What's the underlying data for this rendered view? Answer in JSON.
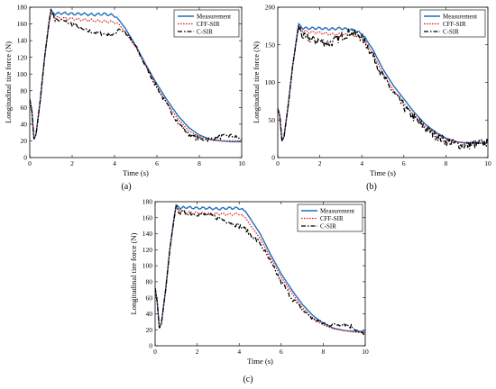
{
  "colors": {
    "measurement": "#1f6fbf",
    "cff_sir": "#e02020",
    "c_sir": "#000000"
  },
  "chart_data": [
    {
      "type": "line",
      "caption": "(a)",
      "xlabel": "Time (s)",
      "ylabel": "Longitudinal tire force (N)",
      "xlim": [
        0,
        10
      ],
      "ylim": [
        0,
        180
      ],
      "xticks": [
        "0",
        "2",
        "4",
        "6",
        "8",
        "10"
      ],
      "yticks": [
        "0",
        "20",
        "40",
        "60",
        "80",
        "100",
        "120",
        "140",
        "160",
        "180"
      ],
      "legend": "top-right",
      "grid": false,
      "series": [
        {
          "name": "Measurement",
          "style": "solid",
          "color": "#1f6fbf",
          "x": [
            0,
            0.1,
            0.2,
            0.3,
            0.5,
            0.7,
            0.9,
            1.0,
            1.2,
            1.5,
            2.0,
            2.5,
            3.0,
            3.5,
            4.0,
            4.2,
            4.5,
            5.0,
            5.5,
            6.0,
            6.5,
            7.0,
            7.5,
            8.0,
            8.5,
            9.0,
            9.5,
            10.0
          ],
          "y": [
            70,
            55,
            22,
            28,
            70,
            120,
            160,
            176,
            172,
            173,
            172,
            172,
            171,
            172,
            170,
            165,
            155,
            134,
            110,
            88,
            68,
            50,
            36,
            27,
            22,
            20,
            19,
            19
          ]
        },
        {
          "name": "CFF-SIR",
          "style": "dotted",
          "color": "#e02020",
          "x": [
            0,
            0.1,
            0.2,
            0.3,
            0.5,
            0.7,
            0.9,
            1.0,
            1.2,
            1.5,
            2.0,
            2.5,
            3.0,
            3.5,
            4.0,
            4.2,
            4.5,
            5.0,
            5.5,
            6.0,
            6.5,
            7.0,
            7.5,
            8.0,
            8.5,
            9.0,
            9.5,
            10.0
          ],
          "y": [
            70,
            55,
            22,
            28,
            70,
            120,
            158,
            174,
            168,
            167,
            166,
            165,
            164,
            163,
            162,
            160,
            150,
            132,
            108,
            85,
            64,
            46,
            32,
            25,
            21,
            20,
            20,
            20
          ]
        },
        {
          "name": "C-SIR",
          "style": "dashdot",
          "color": "#000000",
          "x": [
            0,
            0.1,
            0.2,
            0.3,
            0.5,
            0.7,
            0.9,
            1.0,
            1.2,
            1.5,
            2.0,
            2.5,
            3.0,
            3.5,
            4.0,
            4.2,
            4.5,
            5.0,
            5.5,
            6.0,
            6.5,
            7.0,
            7.5,
            8.0,
            8.5,
            9.0,
            9.5,
            10.0
          ],
          "y": [
            70,
            55,
            22,
            28,
            70,
            120,
            160,
            178,
            165,
            164,
            160,
            153,
            150,
            148,
            147,
            155,
            150,
            133,
            108,
            84,
            62,
            42,
            28,
            22,
            22,
            25,
            26,
            22
          ]
        }
      ]
    },
    {
      "type": "line",
      "caption": "(b)",
      "xlabel": "Time (s)",
      "ylabel": "Longitudinal tire force (N)",
      "xlim": [
        0,
        10
      ],
      "ylim": [
        0,
        200
      ],
      "xticks": [
        "0",
        "2",
        "4",
        "6",
        "8",
        "10"
      ],
      "yticks": [
        "0",
        "50",
        "100",
        "150",
        "200"
      ],
      "legend": "top-right",
      "grid": false,
      "series": [
        {
          "name": "Measurement",
          "style": "solid",
          "color": "#1f6fbf",
          "x": [
            0,
            0.1,
            0.2,
            0.3,
            0.5,
            0.7,
            0.9,
            1.0,
            1.2,
            1.5,
            2.0,
            2.5,
            3.0,
            3.5,
            4.0,
            4.5,
            5.0,
            5.5,
            6.0,
            6.5,
            7.0,
            7.5,
            8.0,
            8.5,
            9.0,
            9.5,
            10.0
          ],
          "y": [
            65,
            55,
            22,
            28,
            70,
            120,
            160,
            178,
            172,
            172,
            172,
            171,
            172,
            170,
            165,
            145,
            118,
            96,
            78,
            60,
            45,
            34,
            26,
            21,
            19,
            19,
            19
          ]
        },
        {
          "name": "CFF-SIR",
          "style": "dotted",
          "color": "#e02020",
          "x": [
            0,
            0.1,
            0.2,
            0.3,
            0.5,
            0.7,
            0.9,
            1.0,
            1.2,
            1.5,
            2.0,
            2.5,
            3.0,
            3.5,
            4.0,
            4.5,
            5.0,
            5.5,
            6.0,
            6.5,
            7.0,
            7.5,
            8.0,
            8.5,
            9.0,
            9.5,
            10.0
          ],
          "y": [
            65,
            55,
            22,
            28,
            70,
            120,
            158,
            174,
            168,
            167,
            166,
            164,
            164,
            163,
            160,
            140,
            112,
            90,
            72,
            56,
            42,
            32,
            25,
            21,
            20,
            20,
            20
          ]
        },
        {
          "name": "C-SIR",
          "style": "dashdot",
          "color": "#000000",
          "x": [
            0,
            0.1,
            0.2,
            0.3,
            0.5,
            0.7,
            0.9,
            1.0,
            1.2,
            1.5,
            2.0,
            2.5,
            3.0,
            3.5,
            4.0,
            4.5,
            5.0,
            5.5,
            6.0,
            6.5,
            7.0,
            7.5,
            8.0,
            8.5,
            9.0,
            9.5,
            10.0
          ],
          "y": [
            65,
            55,
            22,
            28,
            70,
            120,
            158,
            176,
            160,
            158,
            155,
            152,
            160,
            168,
            160,
            138,
            108,
            86,
            68,
            52,
            40,
            30,
            22,
            18,
            16,
            18,
            20
          ]
        }
      ]
    },
    {
      "type": "line",
      "caption": "(c)",
      "xlabel": "Time (s)",
      "ylabel": "Longitudinal tire force (N)",
      "xlim": [
        0,
        10
      ],
      "ylim": [
        0,
        180
      ],
      "xticks": [
        "0",
        "2",
        "4",
        "6",
        "8",
        "10"
      ],
      "yticks": [
        "0",
        "20",
        "40",
        "60",
        "80",
        "100",
        "120",
        "140",
        "160",
        "180"
      ],
      "legend": "top-right",
      "grid": false,
      "series": [
        {
          "name": "Measurement",
          "style": "solid",
          "color": "#1f6fbf",
          "x": [
            0,
            0.1,
            0.2,
            0.3,
            0.5,
            0.7,
            0.9,
            1.0,
            1.2,
            1.5,
            2.0,
            2.5,
            3.0,
            3.5,
            4.0,
            4.3,
            4.5,
            5.0,
            5.5,
            6.0,
            6.5,
            7.0,
            7.5,
            8.0,
            8.5,
            9.0,
            9.5,
            10.0
          ],
          "y": [
            72,
            55,
            22,
            28,
            70,
            120,
            160,
            176,
            172,
            173,
            172,
            172,
            171,
            172,
            172,
            168,
            160,
            140,
            114,
            90,
            70,
            52,
            38,
            28,
            22,
            19,
            18,
            18
          ]
        },
        {
          "name": "CFF-SIR",
          "style": "dotted",
          "color": "#e02020",
          "x": [
            0,
            0.1,
            0.2,
            0.3,
            0.5,
            0.7,
            0.9,
            1.0,
            1.2,
            1.5,
            2.0,
            2.5,
            3.0,
            3.5,
            4.0,
            4.3,
            4.5,
            5.0,
            5.5,
            6.0,
            6.5,
            7.0,
            7.5,
            8.0,
            8.5,
            9.0,
            9.5,
            10.0
          ],
          "y": [
            72,
            55,
            22,
            28,
            70,
            120,
            158,
            174,
            168,
            167,
            166,
            165,
            165,
            164,
            165,
            160,
            152,
            134,
            110,
            86,
            66,
            48,
            34,
            26,
            21,
            19,
            17,
            16
          ]
        },
        {
          "name": "C-SIR",
          "style": "dashdot",
          "color": "#000000",
          "x": [
            0,
            0.1,
            0.2,
            0.3,
            0.5,
            0.7,
            0.9,
            1.0,
            1.2,
            1.5,
            2.0,
            2.5,
            3.0,
            3.5,
            4.0,
            4.3,
            4.5,
            5.0,
            5.5,
            6.0,
            6.5,
            7.0,
            7.5,
            8.0,
            8.5,
            9.0,
            9.5,
            10.0
          ],
          "y": [
            72,
            55,
            22,
            28,
            70,
            120,
            158,
            174,
            166,
            166,
            165,
            163,
            160,
            155,
            150,
            145,
            140,
            128,
            104,
            80,
            60,
            45,
            34,
            28,
            26,
            28,
            22,
            12
          ]
        }
      ]
    }
  ]
}
